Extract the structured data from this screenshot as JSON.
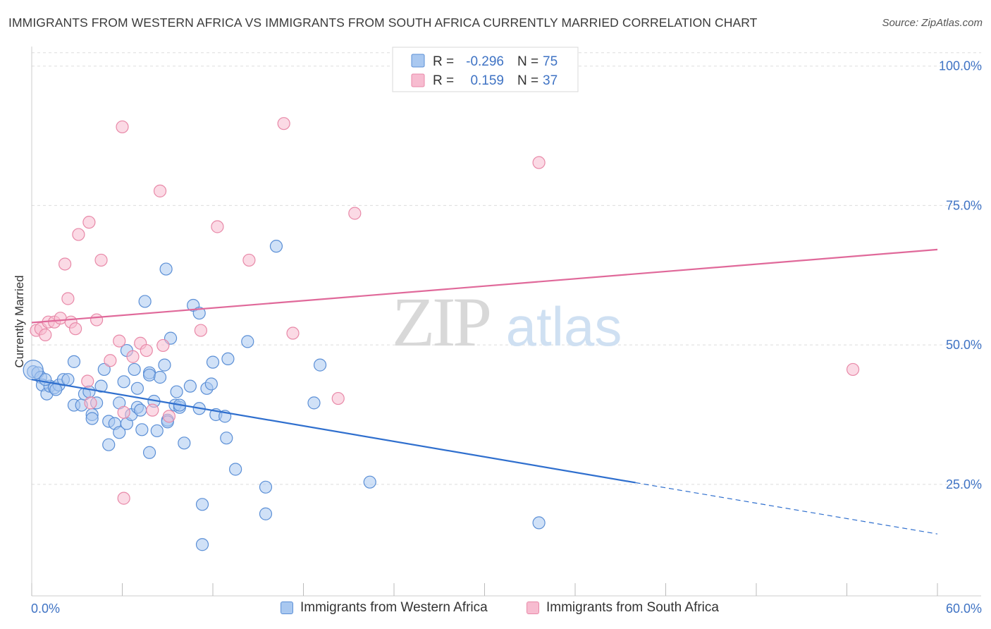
{
  "header": {
    "title": "IMMIGRANTS FROM WESTERN AFRICA VS IMMIGRANTS FROM SOUTH AFRICA CURRENTLY MARRIED CORRELATION CHART",
    "source": "Source: ZipAtlas.com"
  },
  "watermark": {
    "zip": "ZIP",
    "atlas": "atlas"
  },
  "legend_top": {
    "rows": [
      {
        "r_label": "R =",
        "r_value": "-0.296",
        "n_label": "N =",
        "n_value": "75"
      },
      {
        "r_label": "R =",
        "r_value": "0.159",
        "n_label": "N =",
        "n_value": "37"
      }
    ]
  },
  "legend_bottom": {
    "items": [
      {
        "label": "Immigrants from Western Africa"
      },
      {
        "label": "Immigrants from South Africa"
      }
    ]
  },
  "colors": {
    "blue_fill": "#a9c8f0",
    "blue_stroke": "#5b8fd6",
    "blue_line": "#2f6fce",
    "pink_fill": "#f7bcd0",
    "pink_stroke": "#e889a8",
    "pink_line": "#e0699a",
    "value_text": "#3f73c4",
    "grid": "#dddddd"
  },
  "chart_data": {
    "type": "scatter",
    "xlabel": "",
    "ylabel": "Currently Married",
    "xlim": [
      0,
      60
    ],
    "ylim": [
      5,
      103
    ],
    "x_tick_labels": [
      "0.0%",
      "60.0%"
    ],
    "y_ticks": [
      25,
      50,
      75,
      100
    ],
    "y_tick_labels": [
      "25.0%",
      "50.0%",
      "75.0%",
      "100.0%"
    ],
    "grid": true,
    "legend_position": "top-center",
    "series": [
      {
        "name": "Immigrants from Western Africa",
        "r": -0.296,
        "n": 75,
        "trend": {
          "x0": 0,
          "y0": 43.8,
          "x1": 40,
          "y1": 25.3,
          "x_dashed_end": 60,
          "y_dashed_end": 16.1
        },
        "points": [
          [
            0.1,
            45.2
          ],
          [
            0.4,
            45.0
          ],
          [
            0.6,
            44.2
          ],
          [
            0.7,
            42.8
          ],
          [
            1.0,
            41.2
          ],
          [
            1.2,
            42.6
          ],
          [
            1.5,
            42.3
          ],
          [
            1.8,
            42.8
          ],
          [
            2.1,
            43.8
          ],
          [
            2.4,
            43.8
          ],
          [
            2.8,
            47.0
          ],
          [
            2.8,
            39.2
          ],
          [
            3.3,
            39.2
          ],
          [
            3.5,
            41.2
          ],
          [
            3.8,
            41.6
          ],
          [
            4.0,
            37.5
          ],
          [
            4.0,
            36.8
          ],
          [
            4.3,
            39.6
          ],
          [
            4.6,
            42.6
          ],
          [
            4.8,
            45.6
          ],
          [
            5.1,
            36.3
          ],
          [
            5.1,
            32.1
          ],
          [
            5.5,
            35.9
          ],
          [
            5.8,
            39.6
          ],
          [
            5.8,
            34.3
          ],
          [
            6.1,
            43.4
          ],
          [
            6.3,
            35.9
          ],
          [
            6.3,
            49.0
          ],
          [
            6.6,
            37.5
          ],
          [
            6.8,
            45.6
          ],
          [
            7.0,
            42.2
          ],
          [
            7.0,
            38.8
          ],
          [
            7.2,
            38.3
          ],
          [
            7.3,
            34.8
          ],
          [
            7.5,
            57.8
          ],
          [
            7.8,
            30.7
          ],
          [
            7.8,
            45.0
          ],
          [
            7.8,
            44.6
          ],
          [
            8.1,
            39.9
          ],
          [
            8.3,
            34.6
          ],
          [
            8.5,
            44.2
          ],
          [
            8.8,
            46.4
          ],
          [
            8.9,
            63.6
          ],
          [
            9.0,
            36.5
          ],
          [
            9.2,
            51.2
          ],
          [
            9.5,
            39.2
          ],
          [
            9.6,
            41.6
          ],
          [
            9.8,
            38.8
          ],
          [
            9.8,
            39.2
          ],
          [
            10.1,
            32.4
          ],
          [
            10.5,
            42.6
          ],
          [
            10.7,
            57.1
          ],
          [
            11.1,
            55.7
          ],
          [
            11.1,
            38.6
          ],
          [
            11.3,
            21.4
          ],
          [
            11.3,
            14.2
          ],
          [
            11.6,
            42.2
          ],
          [
            11.9,
            43.0
          ],
          [
            12.0,
            46.9
          ],
          [
            12.2,
            37.5
          ],
          [
            12.8,
            37.2
          ],
          [
            12.9,
            33.3
          ],
          [
            13.5,
            27.7
          ],
          [
            14.3,
            50.6
          ],
          [
            15.5,
            19.7
          ],
          [
            15.5,
            24.5
          ],
          [
            16.2,
            67.7
          ],
          [
            18.7,
            39.6
          ],
          [
            19.1,
            46.4
          ],
          [
            22.4,
            25.4
          ],
          [
            33.6,
            18.1
          ],
          [
            0.9,
            43.8
          ],
          [
            1.6,
            42.0
          ],
          [
            9.0,
            36.2
          ],
          [
            13.0,
            47.5
          ]
        ]
      },
      {
        "name": "Immigrants from South Africa",
        "r": 0.159,
        "n": 37,
        "trend": {
          "x0": 0,
          "y0": 54.0,
          "x1": 60,
          "y1": 67.1
        },
        "points": [
          [
            0.3,
            52.6
          ],
          [
            0.6,
            52.9
          ],
          [
            0.9,
            51.8
          ],
          [
            1.1,
            54.1
          ],
          [
            1.5,
            54.1
          ],
          [
            1.9,
            54.8
          ],
          [
            2.2,
            64.5
          ],
          [
            2.4,
            58.3
          ],
          [
            2.6,
            54.1
          ],
          [
            2.9,
            52.9
          ],
          [
            3.1,
            69.8
          ],
          [
            3.7,
            43.5
          ],
          [
            3.8,
            72.0
          ],
          [
            3.9,
            39.6
          ],
          [
            4.3,
            54.5
          ],
          [
            4.6,
            65.2
          ],
          [
            5.2,
            47.2
          ],
          [
            5.8,
            50.7
          ],
          [
            6.0,
            89.1
          ],
          [
            6.1,
            37.9
          ],
          [
            6.7,
            47.9
          ],
          [
            7.2,
            50.3
          ],
          [
            7.6,
            49.0
          ],
          [
            8.0,
            38.3
          ],
          [
            8.5,
            77.6
          ],
          [
            8.7,
            49.9
          ],
          [
            9.1,
            37.2
          ],
          [
            11.2,
            52.6
          ],
          [
            12.3,
            71.2
          ],
          [
            14.4,
            65.2
          ],
          [
            16.7,
            89.7
          ],
          [
            17.3,
            52.1
          ],
          [
            20.3,
            40.4
          ],
          [
            21.4,
            73.6
          ],
          [
            33.6,
            82.7
          ],
          [
            54.4,
            45.6
          ],
          [
            6.1,
            22.5
          ]
        ]
      }
    ]
  }
}
